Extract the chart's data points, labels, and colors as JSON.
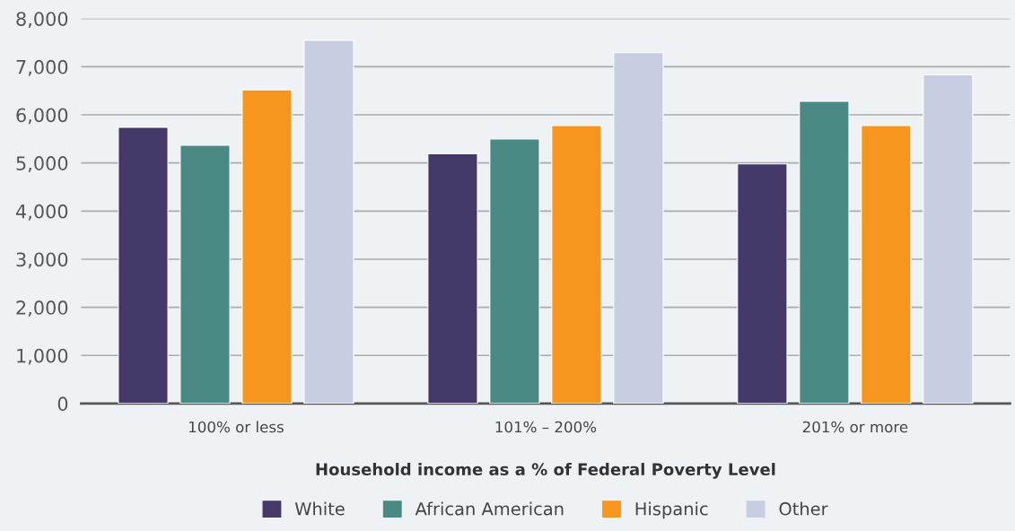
{
  "chart_data": {
    "type": "bar",
    "xlabel": "Household income as a % of Federal Poverty Level",
    "categories": [
      "100% or less",
      "101% – 200%",
      "201% or more"
    ],
    "series": [
      {
        "name": "White",
        "color": "#433868",
        "values": [
          5740,
          5190,
          4980
        ]
      },
      {
        "name": "African American",
        "color": "#4b8984",
        "values": [
          5370,
          5500,
          6280
        ]
      },
      {
        "name": "Hispanic",
        "color": "#f7961f",
        "values": [
          6520,
          5780,
          5780
        ]
      },
      {
        "name": "Other",
        "color": "#c8cde2",
        "values": [
          7550,
          7290,
          6830
        ]
      }
    ],
    "ylim": [
      0,
      8000
    ],
    "yticks": [
      {
        "value": 0,
        "label": "0"
      },
      {
        "value": 1000,
        "label": "1,000"
      },
      {
        "value": 2000,
        "label": "2,000"
      },
      {
        "value": 3000,
        "label": "3,000"
      },
      {
        "value": 4000,
        "label": "4,000"
      },
      {
        "value": 5000,
        "label": "5,000"
      },
      {
        "value": 6000,
        "label": "6,000"
      },
      {
        "value": 7000,
        "label": "7,000"
      },
      {
        "value": 8000,
        "label": "8,000"
      }
    ],
    "grid": "y",
    "legend": "bottom"
  }
}
